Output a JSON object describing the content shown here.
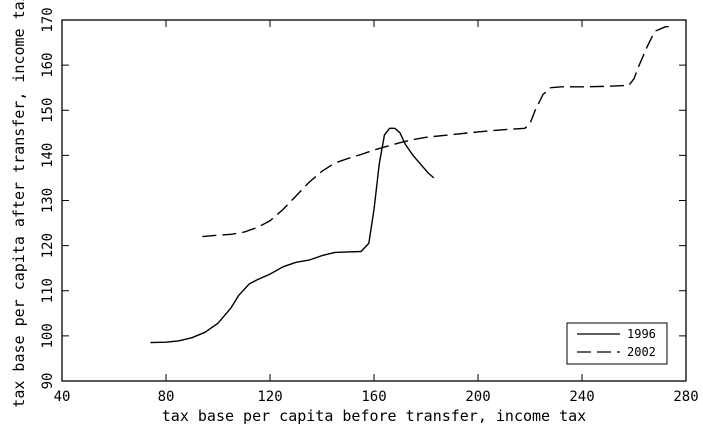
{
  "chart_data": {
    "type": "line",
    "title": "",
    "xlabel": "tax base per capita before transfer, income tax",
    "ylabel": "tax base per capita after transfer, income tax",
    "xlim": [
      40,
      280
    ],
    "ylim": [
      90,
      170
    ],
    "xticks": [
      40,
      80,
      120,
      160,
      200,
      240,
      280
    ],
    "yticks": [
      90,
      100,
      110,
      120,
      130,
      140,
      150,
      160,
      170
    ],
    "grid": false,
    "legend_position": "bottom-right",
    "series": [
      {
        "name": "1996",
        "style": "solid",
        "color": "#000000",
        "x": [
          74,
          80,
          85,
          90,
          95,
          100,
          105,
          108,
          112,
          115,
          120,
          125,
          130,
          135,
          140,
          145,
          150,
          155,
          158,
          160,
          162,
          164,
          166,
          168,
          170,
          172,
          175,
          178,
          181,
          183
        ],
        "y": [
          98.5,
          98.6,
          98.9,
          99.6,
          100.8,
          102.8,
          106.2,
          109.0,
          111.5,
          112.4,
          113.7,
          115.3,
          116.3,
          116.8,
          117.8,
          118.5,
          118.6,
          118.7,
          120.5,
          128.0,
          138.0,
          144.5,
          146.0,
          146.0,
          145.0,
          142.5,
          140.0,
          138.0,
          136.0,
          135.0
        ]
      },
      {
        "name": "2002",
        "style": "dashed",
        "color": "#000000",
        "x": [
          94,
          100,
          105,
          110,
          115,
          120,
          125,
          130,
          135,
          140,
          145,
          150,
          155,
          160,
          165,
          170,
          175,
          180,
          190,
          200,
          210,
          218,
          220,
          222,
          225,
          228,
          232,
          240,
          250,
          258,
          260,
          262,
          265,
          268,
          272,
          275
        ],
        "y": [
          122.0,
          122.3,
          122.5,
          123.0,
          124.0,
          125.5,
          128.0,
          131.0,
          134.0,
          136.5,
          138.3,
          139.3,
          140.2,
          141.2,
          142.0,
          142.8,
          143.5,
          144.0,
          144.6,
          145.2,
          145.7,
          146.0,
          147.0,
          150.0,
          153.5,
          155.0,
          155.2,
          155.2,
          155.3,
          155.5,
          157.0,
          160.0,
          164.0,
          167.5,
          168.5,
          168.6
        ]
      }
    ]
  }
}
